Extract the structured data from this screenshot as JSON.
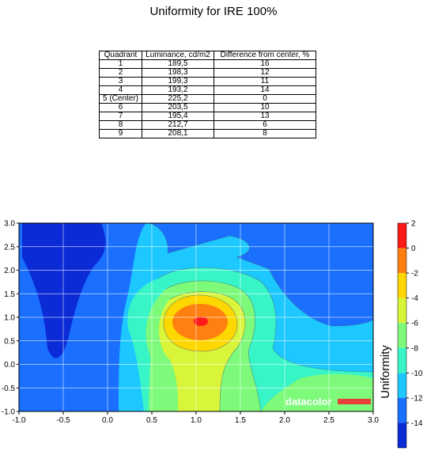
{
  "title": "Uniformity for IRE 100%",
  "table": {
    "headers": [
      "Quadrant",
      "Luminance, cd/m2",
      "Difference from center, %"
    ],
    "rows": [
      [
        "1",
        "189,5",
        "16"
      ],
      [
        "2",
        "198,3",
        "12"
      ],
      [
        "3",
        "199,3",
        "11"
      ],
      [
        "4",
        "193,2",
        "14"
      ],
      [
        "5 (Center)",
        "225,2",
        "0"
      ],
      [
        "6",
        "203,5",
        "10"
      ],
      [
        "7",
        "195,4",
        "13"
      ],
      [
        "8",
        "212,7",
        "6"
      ],
      [
        "9",
        "208,1",
        "8"
      ]
    ]
  },
  "chart_data": {
    "type": "heatmap",
    "title": "",
    "xlim": [
      -1.0,
      3.0
    ],
    "ylim": [
      -1.0,
      3.0
    ],
    "x_ticks": [
      "-1.0",
      "-0.5",
      "0.0",
      "0.5",
      "1.0",
      "1.5",
      "2.0",
      "2.5",
      "3.0"
    ],
    "y_ticks": [
      "3.0",
      "2.5",
      "2.0",
      "1.5",
      "1.0",
      "0.5",
      "0.0",
      "-0.5",
      "-1.0"
    ],
    "grid": true,
    "colorbar": {
      "label": "Uniformity",
      "ticks": [
        "2",
        "0",
        "-2",
        "-4",
        "-6",
        "-8",
        "-10",
        "-12",
        "-14"
      ],
      "levels": [
        {
          "from": 0,
          "to": 2,
          "color": "#ff1a1a"
        },
        {
          "from": -2,
          "to": 0,
          "color": "#ff7f10"
        },
        {
          "from": -4,
          "to": -2,
          "color": "#ffd700"
        },
        {
          "from": -6,
          "to": -4,
          "color": "#d9f53a"
        },
        {
          "from": -8,
          "to": -6,
          "color": "#7dfa7a"
        },
        {
          "from": -10,
          "to": -8,
          "color": "#38f5c8"
        },
        {
          "from": -12,
          "to": -10,
          "color": "#1cc8ff"
        },
        {
          "from": -14,
          "to": -12,
          "color": "#1a6fff"
        },
        {
          "from": -16,
          "to": -14,
          "color": "#0a2bd6"
        }
      ]
    }
  },
  "watermark": "datacolor",
  "colors": {
    "watermark_bar": "#e8413c"
  }
}
